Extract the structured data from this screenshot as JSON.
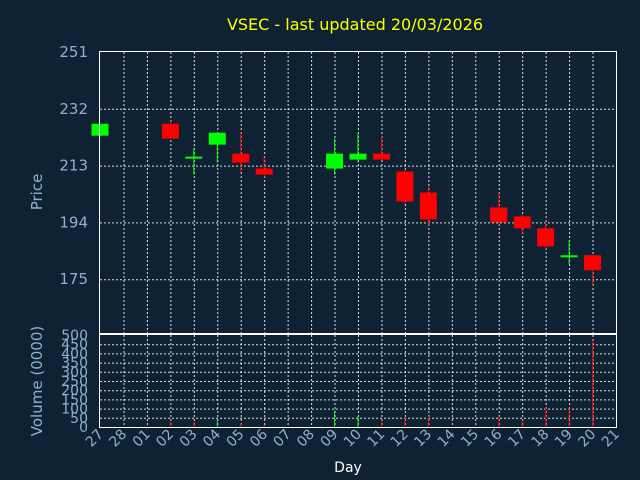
{
  "chart_data": {
    "type": "candlestick",
    "title": "VSEC - last updated 20/03/2026",
    "xlabel": "Day",
    "ylabel": "Price",
    "volume_label": "Volume (0000)",
    "price_ticks": [
      175,
      194,
      213,
      232,
      251
    ],
    "price_range": [
      157,
      251
    ],
    "volume_ticks": [
      0,
      50,
      100,
      150,
      200,
      250,
      300,
      350,
      400,
      450,
      500
    ],
    "volume_range": [
      0,
      500
    ],
    "x_tick_labels": [
      "27",
      "28",
      "01",
      "02",
      "03",
      "04",
      "05",
      "06",
      "07",
      "08",
      "09",
      "10",
      "11",
      "12",
      "13",
      "14",
      "15",
      "16",
      "17",
      "18",
      "19",
      "20",
      "21"
    ],
    "grid": true,
    "up_color": "#00ff00",
    "down_color": "#ff0000",
    "candles": [
      {
        "day": "27",
        "open": 223,
        "close": 227,
        "high": 227,
        "low": 223,
        "volume": 0
      },
      {
        "day": "02",
        "open": 227,
        "close": 222,
        "high": 228,
        "low": 222,
        "volume": 30
      },
      {
        "day": "03",
        "open": 216,
        "close": 216,
        "high": 219,
        "low": 210,
        "volume": 30
      },
      {
        "day": "04",
        "open": 220,
        "close": 224,
        "high": 224,
        "low": 214,
        "volume": 40
      },
      {
        "day": "05",
        "open": 217,
        "close": 214,
        "high": 224,
        "low": 211,
        "volume": 20
      },
      {
        "day": "06",
        "open": 212,
        "close": 210,
        "high": 216,
        "low": 209,
        "volume": 10
      },
      {
        "day": "09",
        "open": 212,
        "close": 217,
        "high": 222,
        "low": 210,
        "volume": 90
      },
      {
        "day": "10",
        "open": 215,
        "close": 217,
        "high": 224,
        "low": 214,
        "volume": 60
      },
      {
        "day": "11",
        "open": 217,
        "close": 215,
        "high": 223,
        "low": 215,
        "volume": 40
      },
      {
        "day": "12",
        "open": 211,
        "close": 201,
        "high": 212,
        "low": 200,
        "volume": 50
      },
      {
        "day": "13",
        "open": 204,
        "close": 195,
        "high": 206,
        "low": 193,
        "volume": 60
      },
      {
        "day": "16",
        "open": 199,
        "close": 194,
        "high": 204,
        "low": 193,
        "volume": 60
      },
      {
        "day": "17",
        "open": 196,
        "close": 192,
        "high": 197,
        "low": 190,
        "volume": 40
      },
      {
        "day": "18",
        "open": 192,
        "close": 186,
        "high": 194,
        "low": 185,
        "volume": 110
      },
      {
        "day": "19",
        "open": 183,
        "close": 183,
        "high": 188,
        "low": 180,
        "volume": 110
      },
      {
        "day": "20",
        "open": 183,
        "close": 178,
        "high": 183,
        "low": 173,
        "volume": 470
      }
    ]
  }
}
